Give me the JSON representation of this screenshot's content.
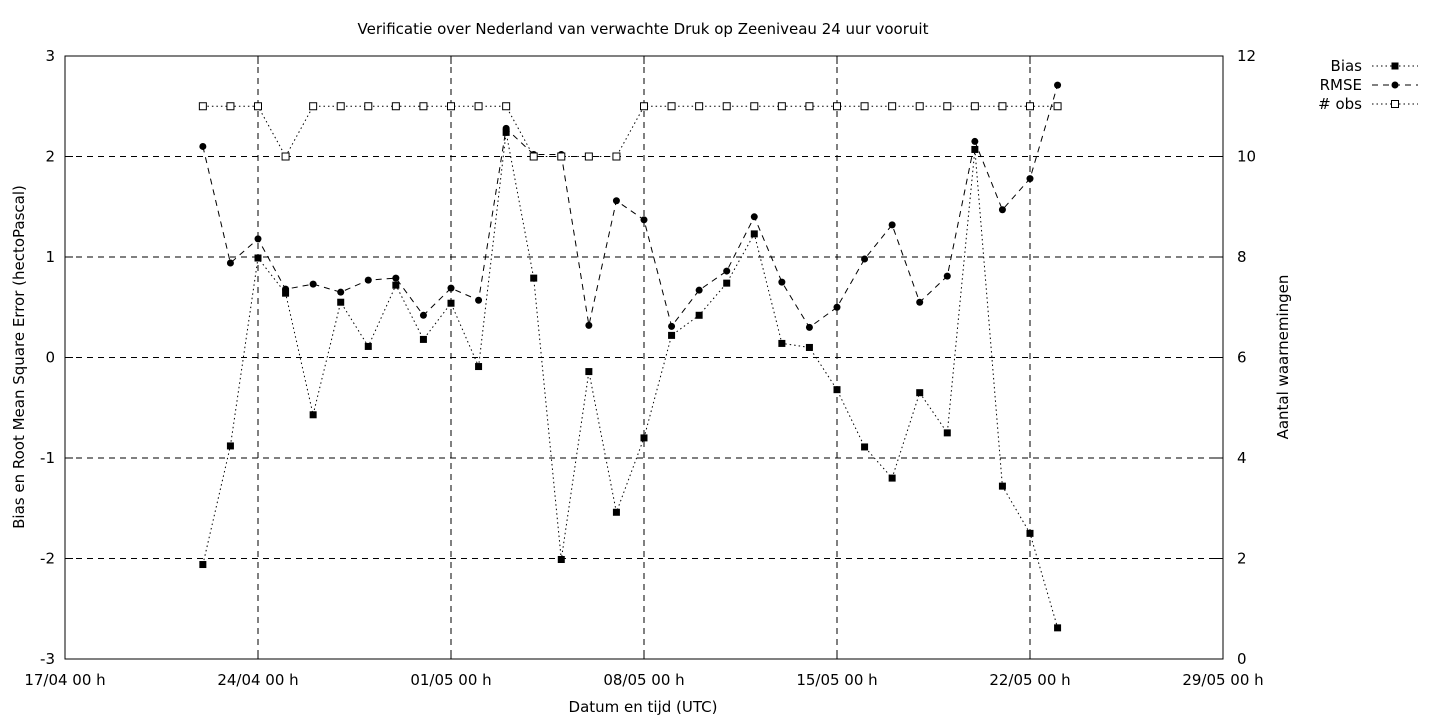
{
  "chart_data": {
    "type": "line",
    "title": "Verificatie over Nederland van verwachte Druk op Zeeniveau 24 uur vooruit",
    "xlabel": "Datum en tijd (UTC)",
    "ylabel": "Bias en Root Mean Square Error (hectoPascal)",
    "y2label": "Aantal waarnemingen",
    "x_tick_labels": [
      "17/04 00 h",
      "24/04 00 h",
      "01/05 00 h",
      "08/05 00 h",
      "15/05 00 h",
      "22/05 00 h",
      "29/05 00 h"
    ],
    "x_days": [
      0,
      7,
      14,
      21,
      28,
      35,
      42
    ],
    "xlim_days": [
      0,
      42
    ],
    "ylim": [
      -3,
      3
    ],
    "y_ticks": [
      -3,
      -2,
      -1,
      0,
      1,
      2,
      3
    ],
    "y_tick_labels": [
      "-3",
      "-2",
      "-1",
      "0",
      "1",
      "2",
      "3"
    ],
    "y2lim": [
      0,
      12
    ],
    "y2_ticks": [
      0,
      2,
      4,
      6,
      8,
      10,
      12
    ],
    "y2_tick_labels": [
      "0",
      "2",
      "4",
      "6",
      "8",
      "10",
      "12"
    ],
    "grid": true,
    "legend_position": "top-right outside",
    "series": [
      {
        "name": "Bias",
        "axis": "left",
        "marker": "filled-square",
        "x": [
          5,
          6,
          7,
          8,
          9,
          10,
          11,
          12,
          13,
          14,
          15,
          16,
          17,
          18,
          19,
          20,
          21,
          22,
          23,
          24,
          25,
          26,
          27,
          28,
          29,
          30,
          31,
          32,
          33,
          34,
          35,
          36
        ],
        "values": [
          -2.06,
          -0.88,
          0.99,
          0.64,
          -0.57,
          0.55,
          0.11,
          0.72,
          0.18,
          0.54,
          -0.09,
          2.24,
          0.79,
          -2.01,
          -0.14,
          -1.54,
          -0.8,
          0.22,
          0.42,
          0.74,
          1.23,
          0.14,
          0.1,
          -0.32,
          -0.89,
          -1.2,
          -0.35,
          -0.75,
          2.07,
          -1.28,
          -1.75,
          -2.69
        ]
      },
      {
        "name": "RMSE",
        "axis": "left",
        "marker": "filled-circle",
        "x": [
          5,
          6,
          7,
          8,
          9,
          10,
          11,
          12,
          13,
          14,
          15,
          16,
          17,
          18,
          19,
          20,
          21,
          22,
          23,
          24,
          25,
          26,
          27,
          28,
          29,
          30,
          31,
          32,
          33,
          34,
          35,
          36
        ],
        "values": [
          2.1,
          0.94,
          1.18,
          0.68,
          0.73,
          0.65,
          0.77,
          0.79,
          0.42,
          0.69,
          0.57,
          2.28,
          2.02,
          2.02,
          0.32,
          1.56,
          1.37,
          0.31,
          0.67,
          0.86,
          1.4,
          0.75,
          0.3,
          0.5,
          0.98,
          1.32,
          0.55,
          0.81,
          2.15,
          1.47,
          1.78,
          2.71
        ]
      },
      {
        "name": "# obs",
        "axis": "right",
        "marker": "open-square",
        "x": [
          5,
          6,
          7,
          8,
          9,
          10,
          11,
          12,
          13,
          14,
          15,
          16,
          17,
          18,
          19,
          20,
          21,
          22,
          23,
          24,
          25,
          26,
          27,
          28,
          29,
          30,
          31,
          32,
          33,
          34,
          35,
          36
        ],
        "values": [
          11,
          11,
          11,
          10,
          11,
          11,
          11,
          11,
          11,
          11,
          11,
          11,
          10,
          10,
          10,
          10,
          11,
          11,
          11,
          11,
          11,
          11,
          11,
          11,
          11,
          11,
          11,
          11,
          11,
          11,
          11,
          11
        ]
      }
    ]
  }
}
